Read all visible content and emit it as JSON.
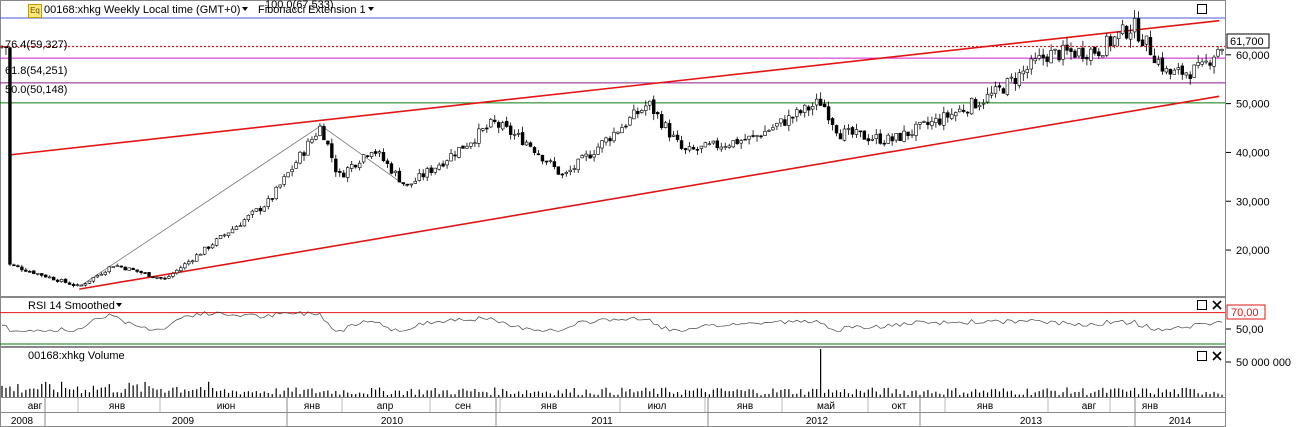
{
  "header": {
    "symbol_title": "00168:xhkg Weekly Local time (GMT+0)",
    "study_name": "Fibonacci Extension 1",
    "logo_text": "Eq"
  },
  "fib_labels": [
    {
      "text": "100.0(67,533)",
      "value": 67533,
      "color": "#4a5bd1"
    },
    {
      "text": "76.4(59,327)",
      "value": 59327,
      "color": "#d01ccf"
    },
    {
      "text": "61.8(54,251)",
      "value": 54251,
      "color": "#8a1a8a"
    },
    {
      "text": "50.0(50,148)",
      "value": 50148,
      "color": "#0a7a0a"
    }
  ],
  "price_panel": {
    "last_price_label": "61,700",
    "last_price": 61700,
    "y_ticks": [
      "20,000",
      "30,000",
      "40,000",
      "50,000",
      "60,000"
    ],
    "y_tick_values": [
      20000,
      30000,
      40000,
      50000,
      60000
    ]
  },
  "rsi_panel": {
    "title": "RSI 14 Smoothed",
    "level_label": "70,00",
    "level_value": 70,
    "tick_label": "50,00",
    "tick_value": 50
  },
  "volume_panel": {
    "title": "00168:xhkg Volume",
    "tick_label": "50 000 000",
    "tick_value": 50000000
  },
  "x_axis": {
    "months": [
      "авг",
      "янв",
      "июн",
      "янв",
      "апр",
      "сен",
      "янв",
      "июл",
      "янв",
      "май",
      "окт",
      "янв",
      "авг",
      "янв"
    ],
    "years": [
      "2008",
      "2009",
      "2010",
      "2011",
      "2012",
      "2013",
      "2014"
    ]
  },
  "chart_data": {
    "type": "candlestick",
    "title": "00168:xhkg Weekly",
    "ylim": [
      11000,
      70000
    ],
    "approx_weekly_close_trend": [
      {
        "date": "2008-06",
        "value": 17000
      },
      {
        "date": "2008-10",
        "value": 12500
      },
      {
        "date": "2008-12",
        "value": 17000
      },
      {
        "date": "2009-03",
        "value": 14000
      },
      {
        "date": "2009-06",
        "value": 22000
      },
      {
        "date": "2009-09",
        "value": 30000
      },
      {
        "date": "2009-12",
        "value": 45500
      },
      {
        "date": "2010-01",
        "value": 35000
      },
      {
        "date": "2010-03",
        "value": 41000
      },
      {
        "date": "2010-05",
        "value": 33000
      },
      {
        "date": "2010-07",
        "value": 38000
      },
      {
        "date": "2010-10",
        "value": 46000
      },
      {
        "date": "2010-12",
        "value": 42000
      },
      {
        "date": "2011-02",
        "value": 35000
      },
      {
        "date": "2011-05",
        "value": 44000
      },
      {
        "date": "2011-07",
        "value": 50000
      },
      {
        "date": "2011-09",
        "value": 40000
      },
      {
        "date": "2012-01",
        "value": 43000
      },
      {
        "date": "2012-05",
        "value": 50500
      },
      {
        "date": "2012-06",
        "value": 44000
      },
      {
        "date": "2012-09",
        "value": 42500
      },
      {
        "date": "2012-12",
        "value": 47000
      },
      {
        "date": "2013-03",
        "value": 52000
      },
      {
        "date": "2013-06",
        "value": 60000
      },
      {
        "date": "2013-09",
        "value": 61000
      },
      {
        "date": "2013-11",
        "value": 66000
      },
      {
        "date": "2014-01",
        "value": 56000
      },
      {
        "date": "2014-03",
        "value": 57000
      },
      {
        "date": "2014-04",
        "value": 61700
      }
    ],
    "trend_channel": {
      "upper": [
        {
          "date": "2008-06",
          "value": 39500
        },
        {
          "date": "2014-04",
          "value": 67000
        }
      ],
      "lower": [
        {
          "date": "2008-10",
          "value": 12000
        },
        {
          "date": "2014-04",
          "value": 51500
        }
      ]
    },
    "fibonacci_levels": [
      {
        "level": 100.0,
        "value": 67533
      },
      {
        "level": 76.4,
        "value": 59327
      },
      {
        "level": 61.8,
        "value": 54251
      },
      {
        "level": 50.0,
        "value": 50148
      }
    ],
    "rsi": {
      "period": 14,
      "level": 70,
      "approx_range": [
        40,
        75
      ]
    },
    "volume": {
      "peak_week": "2012-05",
      "peak_value": 55000000
    },
    "colors": {
      "channel": "#e21414",
      "up_candle": "#ffffff",
      "down_candle": "#000000",
      "rsi_line": "#444444",
      "volume_bar": "#000000",
      "fib_100": "#4a5bd1",
      "fib_764": "#d01ccf",
      "fib_618": "#8a1a8a",
      "fib_50": "#0a7a0a"
    }
  }
}
